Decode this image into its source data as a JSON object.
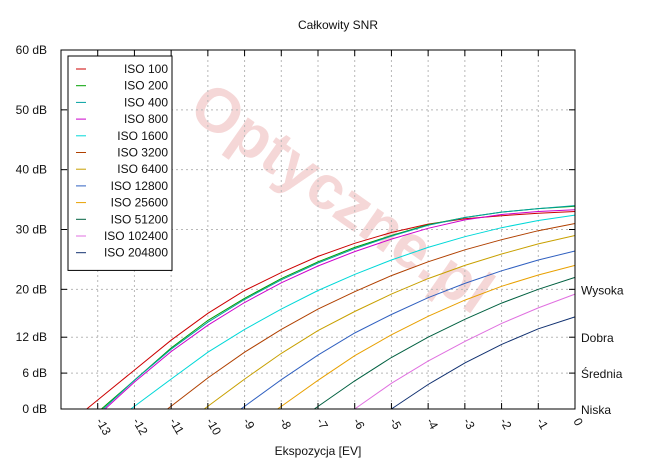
{
  "chart_data": {
    "type": "line",
    "title": "Całkowity SNR",
    "xlabel": "Ekspozycja [EV]",
    "ylabel": "",
    "xlim": [
      -14,
      0
    ],
    "ylim": [
      0,
      60
    ],
    "x_reversed_label_rotation": true,
    "x_ticks": [
      -13,
      -12,
      -11,
      -10,
      -9,
      -8,
      -7,
      -6,
      -5,
      -4,
      -3,
      -2,
      -1,
      0
    ],
    "y_ticks": [
      {
        "value": 0,
        "label": "0 dB"
      },
      {
        "value": 6,
        "label": "6 dB"
      },
      {
        "value": 12,
        "label": "12 dB"
      },
      {
        "value": 20,
        "label": "20 dB"
      },
      {
        "value": 30,
        "label": "30 dB"
      },
      {
        "value": 40,
        "label": "40 dB"
      },
      {
        "value": 50,
        "label": "50 dB"
      },
      {
        "value": 60,
        "label": "60 dB"
      }
    ],
    "right_labels": [
      {
        "value": 20,
        "label": "Wysoka"
      },
      {
        "value": 12,
        "label": "Dobra"
      },
      {
        "value": 6,
        "label": "Średnia"
      },
      {
        "value": 0,
        "label": "Niska"
      }
    ],
    "grid": true,
    "legend_position": "top-left",
    "watermark": "Optyczne.pl",
    "series": [
      {
        "name": "ISO 100",
        "color": "#cc0000",
        "x": [
          -13.3,
          -13,
          -12,
          -11,
          -10,
          -9,
          -8,
          -7,
          -6,
          -5,
          -4,
          -3,
          -2,
          -1,
          0
        ],
        "y": [
          0,
          1.5,
          6.5,
          11.5,
          16,
          19.8,
          22.8,
          25.5,
          27.7,
          29.5,
          30.9,
          31.8,
          32.3,
          32.7,
          33.0
        ]
      },
      {
        "name": "ISO 200",
        "color": "#00a000",
        "x": [
          -12.9,
          -12,
          -11,
          -10,
          -9,
          -8,
          -7,
          -6,
          -5,
          -4,
          -3,
          -2,
          -1,
          0
        ],
        "y": [
          0,
          4.8,
          10.2,
          14.8,
          18.5,
          21.8,
          24.6,
          27.0,
          29.0,
          30.8,
          32.0,
          32.9,
          33.5,
          33.9
        ]
      },
      {
        "name": "ISO 400",
        "color": "#00a0a0",
        "x": [
          -12.85,
          -12,
          -11,
          -10,
          -9,
          -8,
          -7,
          -6,
          -5,
          -4,
          -3,
          -2,
          -1,
          0
        ],
        "y": [
          0,
          4.8,
          10.0,
          14.5,
          18.3,
          21.6,
          24.4,
          26.8,
          28.9,
          30.7,
          32.0,
          32.9,
          33.5,
          34.0
        ]
      },
      {
        "name": "ISO 800",
        "color": "#cc00cc",
        "x": [
          -12.8,
          -12,
          -11,
          -10,
          -9,
          -8,
          -7,
          -6,
          -5,
          -4,
          -3,
          -2,
          -1,
          0
        ],
        "y": [
          0,
          4.5,
          9.6,
          14.0,
          17.8,
          21.1,
          23.9,
          26.3,
          28.4,
          30.2,
          31.6,
          32.5,
          33.0,
          33.3
        ]
      },
      {
        "name": "ISO 1600",
        "color": "#00d8d8",
        "x": [
          -12.1,
          -11,
          -10,
          -9,
          -8,
          -7,
          -6,
          -5,
          -4,
          -3,
          -2,
          -1,
          0
        ],
        "y": [
          0,
          5.0,
          9.5,
          13.3,
          16.7,
          19.8,
          22.5,
          24.9,
          27.0,
          28.8,
          30.3,
          31.5,
          32.4
        ]
      },
      {
        "name": "ISO 3200",
        "color": "#b04000",
        "x": [
          -11.1,
          -10,
          -9,
          -8,
          -7,
          -6,
          -5,
          -4,
          -3,
          -2,
          -1,
          0
        ],
        "y": [
          0,
          5.2,
          9.5,
          13.3,
          16.7,
          19.6,
          22.3,
          24.6,
          26.6,
          28.3,
          29.8,
          31.0
        ]
      },
      {
        "name": "ISO 6400",
        "color": "#c8a000",
        "x": [
          -10.1,
          -9,
          -8,
          -7,
          -6,
          -5,
          -4,
          -3,
          -2,
          -1,
          0
        ],
        "y": [
          0,
          5.0,
          9.3,
          13.1,
          16.3,
          19.2,
          21.8,
          24.0,
          25.9,
          27.6,
          29.0
        ]
      },
      {
        "name": "ISO 12800",
        "color": "#3060c0",
        "x": [
          -9.1,
          -8,
          -7,
          -6,
          -5,
          -4,
          -3,
          -2,
          -1,
          0
        ],
        "y": [
          0,
          4.9,
          9.0,
          12.7,
          15.8,
          18.6,
          21.0,
          23.1,
          24.9,
          26.4
        ]
      },
      {
        "name": "ISO 25600",
        "color": "#e8a000",
        "x": [
          -8.1,
          -7,
          -6,
          -5,
          -4,
          -3,
          -2,
          -1,
          0
        ],
        "y": [
          0,
          4.8,
          8.9,
          12.4,
          15.5,
          18.2,
          20.5,
          22.4,
          24.0
        ]
      },
      {
        "name": "ISO 51200",
        "color": "#006040",
        "x": [
          -7.1,
          -6,
          -5,
          -4,
          -3,
          -2,
          -1,
          0
        ],
        "y": [
          0,
          4.7,
          8.6,
          12.0,
          15.0,
          17.7,
          20.0,
          22.0
        ]
      },
      {
        "name": "ISO 102400",
        "color": "#e070e0",
        "x": [
          -6.0,
          -5,
          -4,
          -3,
          -2,
          -1,
          0
        ],
        "y": [
          0,
          4.3,
          8.0,
          11.3,
          14.3,
          16.9,
          19.2
        ]
      },
      {
        "name": "ISO 204800",
        "color": "#103070",
        "x": [
          -5.0,
          -4,
          -3,
          -2,
          -1,
          0
        ],
        "y": [
          0,
          4.1,
          7.7,
          10.8,
          13.4,
          15.4
        ]
      }
    ]
  }
}
